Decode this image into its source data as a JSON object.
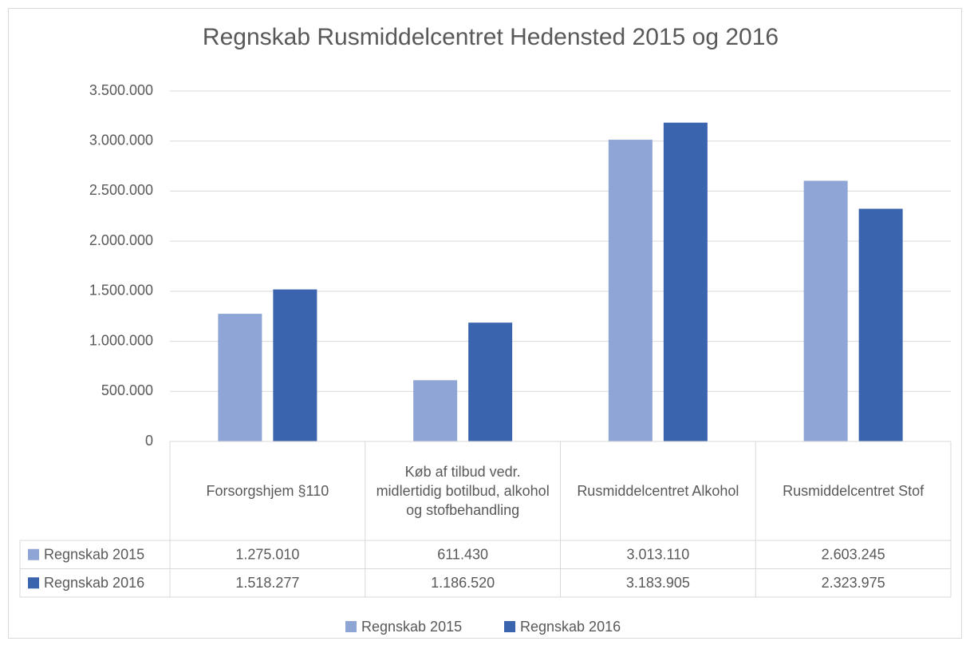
{
  "chart_data": {
    "type": "bar",
    "title": "Regnskab Rusmiddelcentret Hedensted 2015 og 2016",
    "categories": [
      "Forsorgshjem §110",
      "Køb af tilbud vedr. midlertidig botilbud, alkohol og stofbehandling",
      "Rusmiddelcentret Alkohol",
      "Rusmiddelcentret Stof"
    ],
    "series": [
      {
        "name": "Regnskab 2015",
        "color": "#8fa5d6",
        "values": [
          1275010,
          611430,
          3013110,
          2603245
        ],
        "value_labels": [
          "1.275.010",
          "611.430",
          "3.013.110",
          "2.603.245"
        ]
      },
      {
        "name": "Regnskab 2016",
        "color": "#3a64ae",
        "values": [
          1518277,
          1186520,
          3183905,
          2323975
        ],
        "value_labels": [
          "1.518.277",
          "1.186.520",
          "3.183.905",
          "2.323.975"
        ]
      }
    ],
    "ylim": [
      0,
      3500000
    ],
    "yticks": [
      0,
      {
        "value": 500000,
        "label": "500.000"
      },
      {
        "value": 1000000,
        "label": "1.000.000"
      },
      {
        "value": 1500000,
        "label": "1.500.000"
      },
      {
        "value": 2000000,
        "label": "2.000.000"
      },
      {
        "value": 2500000,
        "label": "2.500.000"
      },
      {
        "value": 3000000,
        "label": "3.000.000"
      },
      {
        "value": 3500000,
        "label": "3.500.000"
      }
    ],
    "grid": true,
    "legend": "bottom"
  }
}
